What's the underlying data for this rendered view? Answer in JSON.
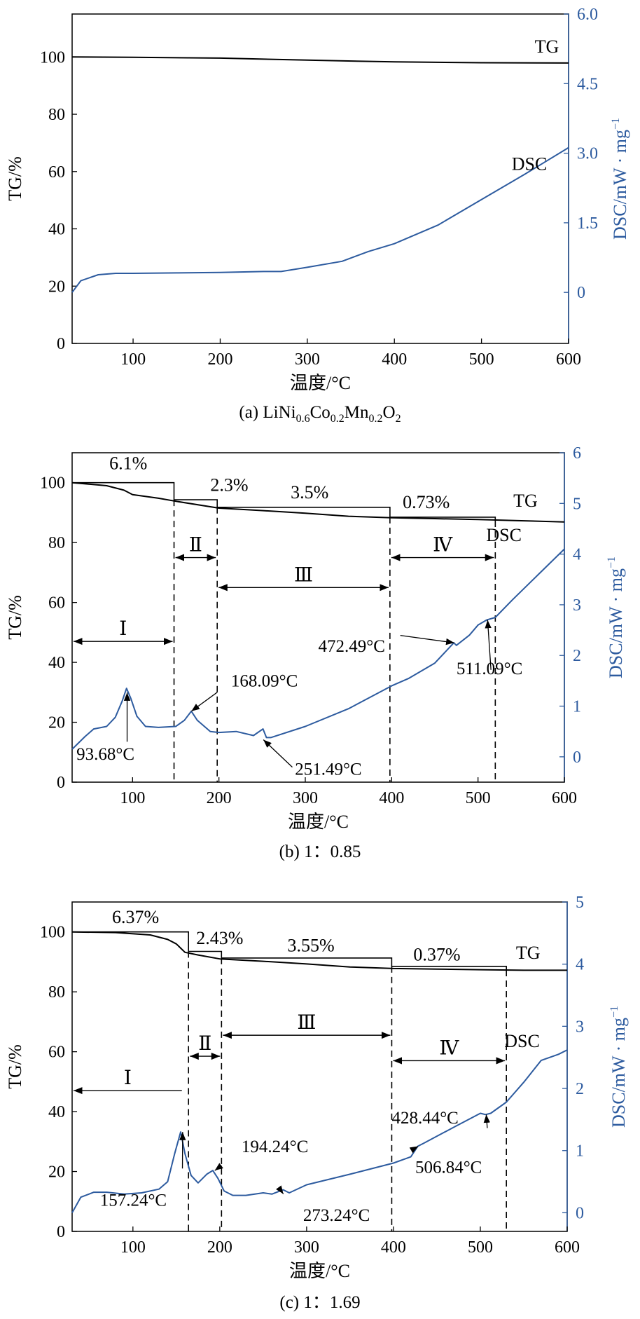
{
  "colors": {
    "tg": "#000000",
    "dsc": "#2d5b9f",
    "axis_right": "#2d5b9f"
  },
  "chart_data": [
    {
      "type": "line",
      "caption": "(a)  LiNi0.6Co0.2Mn0.2O2",
      "caption_parts": {
        "prefix": "(a)  LiNi",
        "s1": "0.6",
        "m1": "Co",
        "s2": "0.2",
        "m2": "Mn",
        "s3": "0.2",
        "m3": "O",
        "s4": "2"
      },
      "xlabel": "温度/°C",
      "ylabel": "TG/%",
      "y2label": "DSC/mW · mg",
      "y2label_sup": "−1",
      "xlim": [
        30,
        600
      ],
      "ylim": [
        0,
        115
      ],
      "y2lim": [
        -1.1,
        6.0
      ],
      "xticks": [
        100,
        200,
        300,
        400,
        500,
        600
      ],
      "yticks": [
        0,
        20,
        40,
        60,
        80,
        100
      ],
      "y2ticks": [
        0,
        1.5,
        3.0,
        4.5,
        6.0
      ],
      "y2tick_labels": [
        "0",
        "1.5",
        "3.0",
        "4.5",
        "6.0"
      ],
      "series": [
        {
          "name": "TG",
          "axis": "left",
          "x": [
            30,
            100,
            200,
            300,
            400,
            500,
            600
          ],
          "y": [
            100,
            99.9,
            99.6,
            98.9,
            98.3,
            98.0,
            97.9
          ]
        },
        {
          "name": "DSC",
          "axis": "right",
          "x": [
            30,
            40,
            60,
            80,
            100,
            150,
            200,
            250,
            270,
            300,
            340,
            370,
            400,
            450,
            500,
            550,
            600
          ],
          "y": [
            0.0,
            0.25,
            0.38,
            0.41,
            0.41,
            0.42,
            0.43,
            0.45,
            0.45,
            0.54,
            0.67,
            0.88,
            1.05,
            1.45,
            2.0,
            2.55,
            3.12
          ]
        }
      ],
      "annotations": []
    },
    {
      "type": "line",
      "caption": "(b) 1：0.85",
      "xlabel": "温度/°C",
      "ylabel": "TG/%",
      "y2label": "DSC/mW · mg",
      "y2label_sup": "−1",
      "xlim": [
        30,
        600
      ],
      "ylim": [
        0,
        110
      ],
      "y2lim": [
        -0.5,
        6.0
      ],
      "xticks": [
        100,
        200,
        300,
        400,
        500,
        600
      ],
      "yticks": [
        0,
        20,
        40,
        60,
        80,
        100
      ],
      "y2ticks": [
        0,
        1,
        2,
        3,
        4,
        5,
        6
      ],
      "y2tick_labels": [
        "0",
        "1",
        "2",
        "3",
        "4",
        "5",
        "6"
      ],
      "series": [
        {
          "name": "TG",
          "axis": "left",
          "x": [
            30,
            70,
            90,
            100,
            130,
            150,
            200,
            250,
            300,
            350,
            400,
            450,
            500,
            550,
            600
          ],
          "y": [
            100,
            99.0,
            97.5,
            96.0,
            94.8,
            93.8,
            91.5,
            90.7,
            89.8,
            88.8,
            88.3,
            88.0,
            87.7,
            87.3,
            86.9
          ]
        },
        {
          "name": "DSC",
          "axis": "right",
          "x": [
            30,
            45,
            55,
            70,
            80,
            88,
            93,
            98,
            105,
            115,
            130,
            150,
            160,
            168,
            175,
            190,
            200,
            220,
            240,
            251,
            255,
            260,
            300,
            350,
            400,
            420,
            450,
            472,
            475,
            490,
            500,
            510,
            520,
            540,
            570,
            600
          ],
          "y": [
            0.15,
            0.4,
            0.55,
            0.6,
            0.78,
            1.1,
            1.35,
            1.15,
            0.8,
            0.6,
            0.58,
            0.6,
            0.72,
            0.9,
            0.72,
            0.5,
            0.48,
            0.5,
            0.42,
            0.55,
            0.38,
            0.38,
            0.6,
            0.95,
            1.4,
            1.55,
            1.85,
            2.25,
            2.2,
            2.4,
            2.6,
            2.7,
            2.75,
            3.1,
            3.6,
            4.1
          ]
        }
      ],
      "steps": {
        "x": [
          30,
          148,
          148,
          198,
          198,
          398,
          398,
          520,
          520
        ],
        "y": [
          100,
          100,
          94.3,
          94.3,
          91.8,
          91.8,
          88.5,
          88.5,
          87.3
        ]
      },
      "step_labels": [
        {
          "text": "6.1%",
          "x": 95,
          "y": 104.5
        },
        {
          "text": "2.3%",
          "x": 212,
          "y": 97.3
        },
        {
          "text": "3.5%",
          "x": 305,
          "y": 94.8
        },
        {
          "text": "0.73%",
          "x": 440,
          "y": 91.5
        },
        {
          "text": "TG",
          "x": 555,
          "y": 92
        },
        {
          "text": "DSC",
          "x": 530,
          "y": 80.5
        }
      ],
      "vlines": [
        148,
        198,
        398,
        520
      ],
      "regions": [
        {
          "label": "Ⅰ",
          "x1": 30,
          "x2": 148,
          "y": 47
        },
        {
          "label": "Ⅱ",
          "x1": 148,
          "x2": 198,
          "y": 75
        },
        {
          "label": "Ⅲ",
          "x1": 198,
          "x2": 398,
          "y": 65
        },
        {
          "label": "Ⅳ",
          "x1": 398,
          "x2": 520,
          "y": 75
        }
      ],
      "annotations": [
        {
          "text": "93.68°C",
          "x": 93.68,
          "y2": 1.35,
          "tx": 35,
          "ty": 7.5,
          "ax": 93.68,
          "ay": 13.5
        },
        {
          "text": "168.09°C",
          "x": 168.09,
          "y2": 0.9,
          "tx": 214,
          "ty": 32,
          "ax": 198,
          "ay": 30
        },
        {
          "text": "251.49°C",
          "x": 251.49,
          "y2": 0.42,
          "tx": 288,
          "ty": 2.5,
          "ax": 285,
          "ay": 5
        },
        {
          "text": "472.49°C",
          "x": 472.49,
          "y2": 2.25,
          "tx": 315,
          "ty": 43.5,
          "ax": 410,
          "ay": 49
        },
        {
          "text": "511.09°C",
          "x": 511.09,
          "y2": 2.7,
          "tx": 475,
          "ty": 36,
          "ax": 515,
          "ay": 37.5
        }
      ]
    },
    {
      "type": "line",
      "caption": "(c) 1：1.69",
      "xlabel": "温度/°C",
      "ylabel": "TG/%",
      "y2label": "DSC/mW · mg",
      "y2label_sup": "−1",
      "xlim": [
        30,
        600
      ],
      "ylim": [
        0,
        110
      ],
      "y2lim": [
        -0.3,
        5.0
      ],
      "xticks": [
        100,
        200,
        300,
        400,
        500,
        600
      ],
      "yticks": [
        0,
        20,
        40,
        60,
        80,
        100
      ],
      "y2ticks": [
        0,
        1,
        2,
        3,
        4,
        5
      ],
      "y2tick_labels": [
        "0",
        "1",
        "2",
        "3",
        "4",
        "5"
      ],
      "series": [
        {
          "name": "TG",
          "axis": "left",
          "x": [
            30,
            80,
            120,
            140,
            150,
            160,
            175,
            200,
            250,
            300,
            350,
            400,
            450,
            500,
            550,
            600
          ],
          "y": [
            100,
            99.8,
            99,
            97.5,
            96,
            93.2,
            92.3,
            91,
            90.2,
            89.3,
            88.3,
            87.8,
            87.6,
            87.4,
            87.2,
            87.2
          ]
        },
        {
          "name": "DSC",
          "axis": "right",
          "x": [
            30,
            40,
            55,
            70,
            90,
            110,
            130,
            140,
            148,
            155,
            160,
            167,
            175,
            185,
            192,
            198,
            205,
            215,
            230,
            250,
            260,
            273,
            280,
            300,
            350,
            400,
            420,
            428,
            435,
            470,
            500,
            506,
            512,
            530,
            550,
            570,
            590,
            600
          ],
          "y": [
            0.0,
            0.25,
            0.33,
            0.33,
            0.3,
            0.32,
            0.38,
            0.5,
            0.95,
            1.3,
            0.95,
            0.6,
            0.48,
            0.62,
            0.68,
            0.55,
            0.35,
            0.28,
            0.28,
            0.32,
            0.3,
            0.37,
            0.32,
            0.45,
            0.62,
            0.8,
            0.9,
            1.07,
            1.12,
            1.38,
            1.6,
            1.58,
            1.6,
            1.78,
            2.1,
            2.45,
            2.55,
            2.62
          ]
        }
      ],
      "steps": {
        "x": [
          30,
          164,
          164,
          202,
          202,
          398,
          398,
          530,
          530
        ],
        "y": [
          100,
          100,
          93.5,
          93.5,
          91.3,
          91.3,
          88.5,
          88.5,
          87.3
        ]
      },
      "step_labels": [
        {
          "text": "6.37%",
          "x": 103,
          "y": 103
        },
        {
          "text": "2.43%",
          "x": 200,
          "y": 96
        },
        {
          "text": "3.55%",
          "x": 305,
          "y": 93.5
        },
        {
          "text": "0.37%",
          "x": 450,
          "y": 90.5
        },
        {
          "text": "TG",
          "x": 555,
          "y": 91
        },
        {
          "text": "DSC",
          "x": 548,
          "y": 61.5
        }
      ],
      "vlines": [
        164,
        202,
        398,
        530
      ],
      "regions": [
        {
          "label": "Ⅰ",
          "x1": 30,
          "x2": 158,
          "y": 47,
          "arrow": "left"
        },
        {
          "label": "Ⅱ",
          "x1": 164,
          "x2": 202,
          "y": 58.5
        },
        {
          "label": "Ⅲ",
          "x1": 202,
          "x2": 398,
          "y": 65.5
        },
        {
          "label": "Ⅳ",
          "x1": 398,
          "x2": 530,
          "y": 57
        }
      ],
      "annotations": [
        {
          "text": "157.24°C",
          "x": 157.24,
          "y2": 1.3,
          "tx": 62,
          "ty": 8.5,
          "ax": 157,
          "ay": 21
        },
        {
          "text": "194.24°C",
          "x": 194.24,
          "y2": 0.68,
          "tx": 225,
          "ty": 26.5,
          "ax": 202,
          "ay": 22
        },
        {
          "text": "273.24°C",
          "x": 273.24,
          "y2": 0.37,
          "tx": 296,
          "ty": 3.5,
          "ax": 272,
          "ay": 13
        },
        {
          "text": "428.44°C",
          "x": 428.44,
          "y2": 1.07,
          "tx": 398,
          "ty": 36,
          "ax": 423,
          "ay": 27.5
        },
        {
          "text": "506.84°C",
          "x": 506.84,
          "y2": 1.58,
          "tx": 425,
          "ty": 19.5,
          "ax": 508,
          "ay": 34.5
        }
      ]
    }
  ]
}
